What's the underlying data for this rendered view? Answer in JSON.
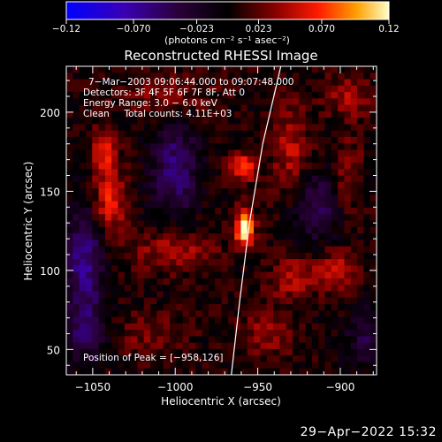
{
  "chart_data": {
    "type": "heatmap",
    "title": "Reconstructed RHESSI Image",
    "xlabel": "Heliocentric X (arcsec)",
    "ylabel": "Heliocentric Y (arcsec)",
    "xlim": [
      -1066,
      -878
    ],
    "ylim": [
      34,
      229
    ],
    "xticks": [
      -1050,
      -1000,
      -950,
      -900
    ],
    "xtick_labels": [
      "−1050",
      "−1000",
      "−950",
      "−900"
    ],
    "yticks": [
      50,
      100,
      150,
      200
    ],
    "ytick_labels": [
      "50",
      "100",
      "150",
      "200"
    ],
    "colorbar": {
      "range": [
        -0.12,
        0.12
      ],
      "ticks": [
        -0.12,
        -0.07,
        -0.023,
        0.023,
        0.07,
        0.12
      ],
      "tick_labels": [
        "−0.12",
        "−0.070",
        "−0.023",
        "0.023",
        "0.070",
        "0.12"
      ],
      "unit_label": "(photons cm⁻² s⁻¹ asec⁻²)",
      "colormap": "std_gamma_ii"
    },
    "annotations": [
      "7−Mar−2003 09:06:44.000 to 09:07:48.000",
      "Detectors: 3F 4F 5F 6F 7F 8F, Att 0",
      "Energy Range: 3.0 − 6.0 keV",
      "Clean     Total counts: 4.11E+03"
    ],
    "peak_label": "Position of Peak = [−958,126]",
    "peak": {
      "x": -958,
      "y": 126,
      "value": 0.12
    },
    "limb_curve": [
      [
        -966,
        34
      ],
      [
        -961,
        80
      ],
      [
        -955,
        130
      ],
      [
        -947,
        180
      ],
      [
        -936,
        229
      ]
    ],
    "features": [
      {
        "x": -958,
        "y": 127,
        "sigma_x": 4,
        "sigma_y": 8,
        "amp": 0.12
      },
      {
        "x": -959,
        "y": 165,
        "sigma_x": 6,
        "sigma_y": 6,
        "amp": 0.075
      },
      {
        "x": -1040,
        "y": 143,
        "sigma_x": 7,
        "sigma_y": 14,
        "amp": 0.06
      },
      {
        "x": -1043,
        "y": 175,
        "sigma_x": 6,
        "sigma_y": 10,
        "amp": 0.05
      },
      {
        "x": -1000,
        "y": 112,
        "sigma_x": 18,
        "sigma_y": 9,
        "amp": 0.04
      },
      {
        "x": -930,
        "y": 175,
        "sigma_x": 8,
        "sigma_y": 22,
        "amp": 0.04
      },
      {
        "x": -902,
        "y": 100,
        "sigma_x": 9,
        "sigma_y": 9,
        "amp": 0.045
      },
      {
        "x": -928,
        "y": 95,
        "sigma_x": 10,
        "sigma_y": 10,
        "amp": 0.04
      },
      {
        "x": -1015,
        "y": 60,
        "sigma_x": 16,
        "sigma_y": 10,
        "amp": 0.025
      },
      {
        "x": -895,
        "y": 210,
        "sigma_x": 10,
        "sigma_y": 10,
        "amp": 0.035
      },
      {
        "x": -1005,
        "y": 210,
        "sigma_x": 18,
        "sigma_y": 10,
        "amp": 0.03
      },
      {
        "x": -895,
        "y": 160,
        "sigma_x": 6,
        "sigma_y": 18,
        "amp": 0.03
      },
      {
        "x": -945,
        "y": 60,
        "sigma_x": 12,
        "sigma_y": 12,
        "amp": 0.03
      }
    ],
    "dark_regions": [
      {
        "x": -1055,
        "y": 105,
        "sigma_x": 8,
        "sigma_y": 25,
        "amp": -0.07
      },
      {
        "x": -1000,
        "y": 165,
        "sigma_x": 10,
        "sigma_y": 22,
        "amp": -0.06
      },
      {
        "x": -915,
        "y": 140,
        "sigma_x": 10,
        "sigma_y": 15,
        "amp": -0.05
      },
      {
        "x": -1055,
        "y": 60,
        "sigma_x": 10,
        "sigma_y": 14,
        "amp": -0.04
      },
      {
        "x": -885,
        "y": 60,
        "sigma_x": 8,
        "sigma_y": 14,
        "amp": -0.04
      }
    ],
    "grid": false
  },
  "footer": {
    "timestamp": "29−Apr−2022 15:32"
  }
}
